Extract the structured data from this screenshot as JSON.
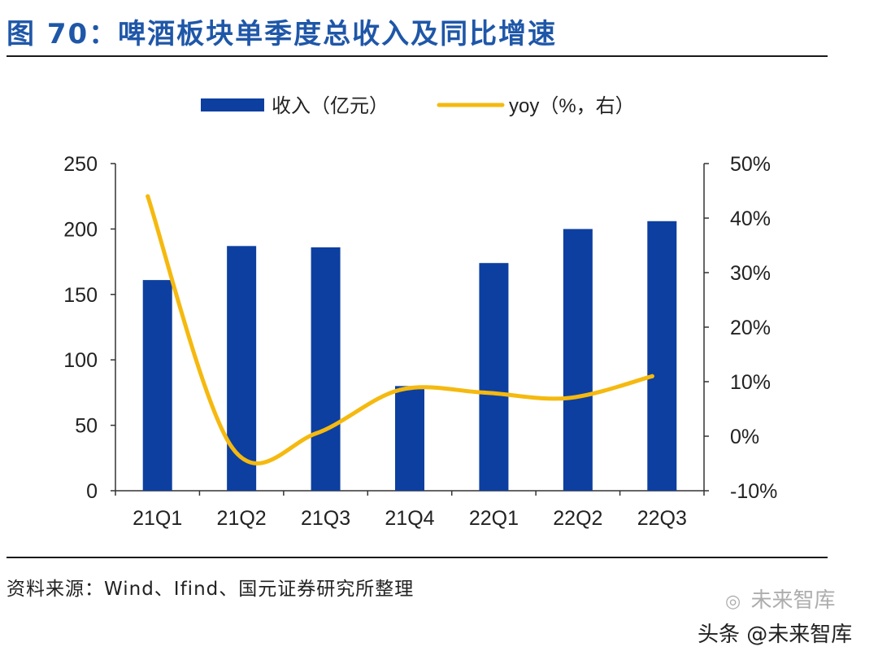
{
  "figure": {
    "title": "图 70：啤酒板块单季度总收入及同比增速",
    "source": "资料来源：Wind、Ifind、国元证券研究所整理"
  },
  "watermark": {
    "logo_text": "未来智库",
    "icon": "wechat-icon",
    "credit": "头条 @未来智库"
  },
  "colors": {
    "title": "#1f57a8",
    "bar": "#0d3fa0",
    "line": "#f5b90f",
    "axis": "#333333",
    "text": "#222222"
  },
  "chart_data": {
    "type": "bar",
    "categories": [
      "21Q1",
      "21Q2",
      "21Q3",
      "21Q4",
      "22Q1",
      "22Q2",
      "22Q3"
    ],
    "series": [
      {
        "name": "收入（亿元）",
        "type": "bar",
        "axis": "left",
        "values": [
          161,
          187,
          186,
          80,
          174,
          200,
          206
        ]
      },
      {
        "name": "yoy（%，右）",
        "type": "line",
        "axis": "right",
        "values": [
          44,
          -2,
          0.5,
          8.5,
          8,
          7,
          11
        ]
      }
    ],
    "y_left": {
      "min": 0,
      "max": 250,
      "ticks": [
        0,
        50,
        100,
        150,
        200,
        250
      ],
      "labels": [
        "0",
        "50",
        "100",
        "150",
        "200",
        "250"
      ]
    },
    "y_right": {
      "min": -10,
      "max": 50,
      "ticks": [
        -10,
        0,
        10,
        20,
        30,
        40,
        50
      ],
      "labels": [
        "-10%",
        "0%",
        "10%",
        "20%",
        "30%",
        "40%",
        "50%"
      ]
    },
    "legend": {
      "position": "top-center",
      "items": [
        "收入（亿元）",
        "yoy（%，右）"
      ]
    },
    "grid": false
  }
}
